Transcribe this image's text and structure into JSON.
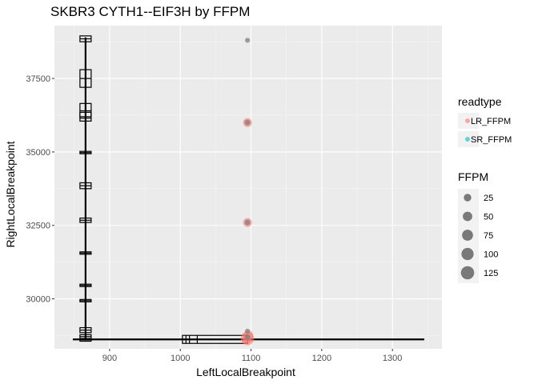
{
  "chart_data": {
    "type": "scatter",
    "title": "SKBR3 CYTH1--EIF3H by FFPM",
    "xlabel": "LeftLocalBreakpoint",
    "ylabel": "RightLocalBreakpoint",
    "xlim": [
      822,
      1370
    ],
    "ylim": [
      28300,
      39300
    ],
    "xticks": [
      "900",
      "1000",
      "1100",
      "1200",
      "1300"
    ],
    "xtick_values": [
      900,
      1000,
      1100,
      1200,
      1300
    ],
    "yticks": [
      "30000",
      "32500",
      "35000",
      "37500"
    ],
    "ytick_values": [
      30000,
      32500,
      35000,
      37500
    ],
    "grid": true,
    "legend_position": "right",
    "colors": {
      "LR_FFPM": "#F8766D",
      "SR_FFPM": "#00BFC4",
      "panel": "#EBEBEB",
      "grid_major": "#FFFFFF",
      "grid_minor": "#F5F5F5"
    },
    "legend": {
      "readtype_title": "readtype",
      "readtype_items": [
        "LR_FFPM",
        "SR_FFPM"
      ],
      "size_title": "FFPM",
      "size_items": [
        "25",
        "50",
        "75",
        "100",
        "125"
      ],
      "size_values": [
        25,
        50,
        75,
        100,
        125
      ]
    },
    "series": [
      {
        "name": "LR_FFPM",
        "points": [
          {
            "x": 1095,
            "y": 36000,
            "ffpm": 40
          },
          {
            "x": 1095,
            "y": 32600,
            "ffpm": 40
          },
          {
            "x": 1095,
            "y": 28650,
            "ffpm": 125
          },
          {
            "x": 1096,
            "y": 28750,
            "ffpm": 60
          },
          {
            "x": 1094,
            "y": 28600,
            "ffpm": 30
          }
        ]
      },
      {
        "name": "SR_FFPM",
        "points": [
          {
            "x": 1095,
            "y": 38800,
            "ffpm": 5
          },
          {
            "x": 1095,
            "y": 36000,
            "ffpm": 8
          },
          {
            "x": 1095,
            "y": 32600,
            "ffpm": 8
          },
          {
            "x": 1095,
            "y": 28900,
            "ffpm": 5
          },
          {
            "x": 1095,
            "y": 28700,
            "ffpm": 8
          }
        ]
      }
    ],
    "boxplot_x": {
      "y": 28620,
      "whisker_low": 848,
      "box_low": 1003,
      "box_mid_lines": [
        1008,
        1013,
        1024
      ],
      "box_high": 1095,
      "whisker_high": 1345
    },
    "boxplots_y": [
      {
        "low": 28520,
        "high": 38900
      },
      {
        "low": 38750,
        "high": 38950
      },
      {
        "low": 37200,
        "high": 37800
      },
      {
        "low": 36150,
        "high": 36650
      },
      {
        "low": 36050,
        "high": 36350
      },
      {
        "low": 34950,
        "high": 35020
      },
      {
        "low": 33750,
        "high": 33950
      },
      {
        "low": 32600,
        "high": 32750
      },
      {
        "low": 31550,
        "high": 31600
      },
      {
        "low": 30450,
        "high": 30500
      },
      {
        "low": 29950,
        "high": 29980
      },
      {
        "low": 28850,
        "high": 29020
      },
      {
        "low": 28650,
        "high": 28780
      },
      {
        "low": 28580,
        "high": 28640
      }
    ],
    "boxplot_y_x": 866
  }
}
